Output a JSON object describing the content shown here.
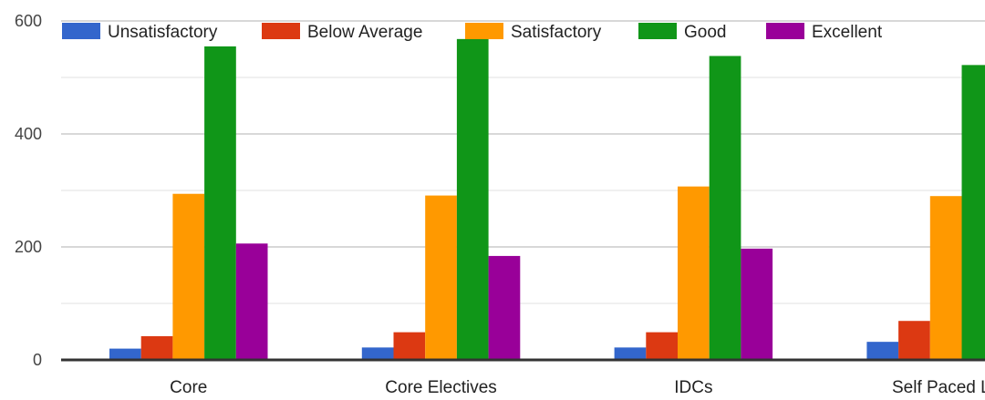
{
  "chart_data": {
    "type": "bar",
    "title": "",
    "xlabel": "",
    "ylabel": "",
    "categories": [
      "Core",
      "Core Electives",
      "IDCs",
      "Self Paced Le"
    ],
    "ylim": [
      0,
      600
    ],
    "yticks": [
      0,
      200,
      400,
      600
    ],
    "grid": true,
    "legend_position": "top",
    "series": [
      {
        "name": "Unsatisfactory",
        "color": "#3366cc",
        "values": [
          20,
          22,
          22,
          32
        ]
      },
      {
        "name": "Below Average",
        "color": "#dc3912",
        "values": [
          42,
          49,
          49,
          69
        ]
      },
      {
        "name": "Satisfactory",
        "color": "#ff9900",
        "values": [
          294,
          291,
          307,
          290
        ]
      },
      {
        "name": "Good",
        "color": "#109618",
        "values": [
          555,
          568,
          538,
          522
        ]
      },
      {
        "name": "Excellent",
        "color": "#990099",
        "values": [
          206,
          184,
          197,
          0
        ]
      }
    ]
  }
}
